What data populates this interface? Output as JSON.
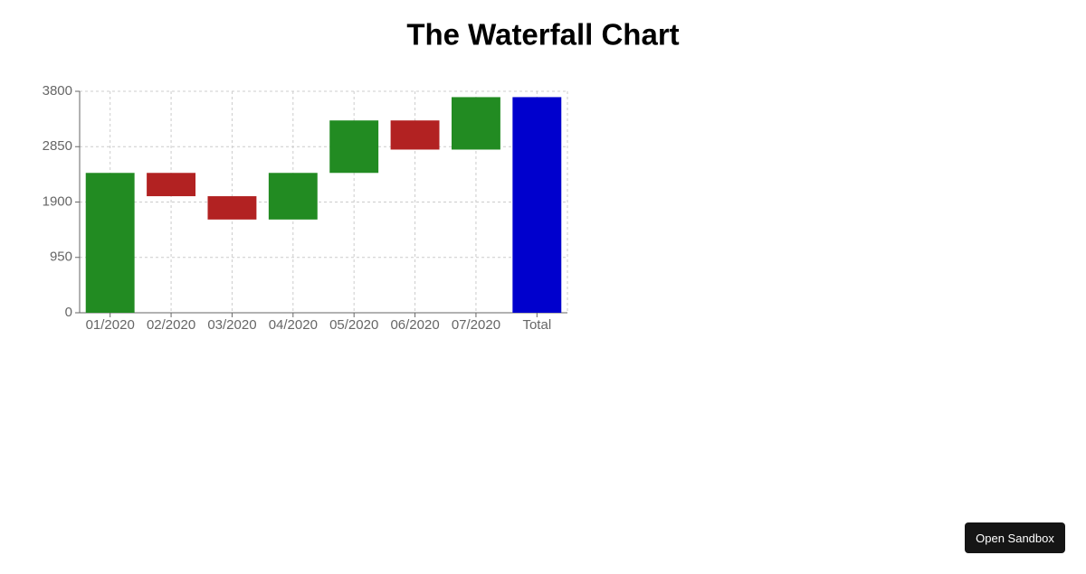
{
  "chart_data": {
    "type": "waterfall",
    "title": "The Waterfall Chart",
    "categories": [
      "01/2020",
      "02/2020",
      "03/2020",
      "04/2020",
      "05/2020",
      "06/2020",
      "07/2020",
      "Total"
    ],
    "values": [
      2400,
      -400,
      -400,
      800,
      900,
      -500,
      900,
      3700
    ],
    "totals": [
      "Total"
    ],
    "colors": {
      "increase": "#228b22",
      "decrease": "#b22222",
      "total": "#0000cd"
    },
    "ylim": [
      0,
      3800
    ],
    "yticks": [
      0,
      950,
      1900,
      2850,
      3800
    ],
    "grid": true
  },
  "button": "Open Sandbox"
}
